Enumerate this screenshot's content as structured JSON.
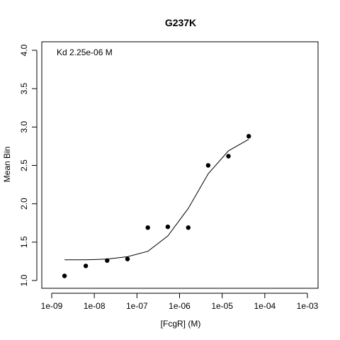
{
  "chart_data": {
    "type": "scatter",
    "title": "G237K",
    "xlabel": "[FcgR] (M)",
    "ylabel": "Mean Bin",
    "x_scale": "log10",
    "xlim": [
      1e-09,
      0.001
    ],
    "ylim": [
      1.0,
      4.0
    ],
    "x_ticks": [
      1e-09,
      1e-08,
      1e-07,
      1e-06,
      1e-05,
      0.0001,
      0.001
    ],
    "x_tick_labels": [
      "1e-09",
      "1e-08",
      "1e-07",
      "1e-06",
      "1e-05",
      "1e-04",
      "1e-03"
    ],
    "y_ticks": [
      1.0,
      1.5,
      2.0,
      2.5,
      3.0,
      3.5,
      4.0
    ],
    "y_tick_labels": [
      "1.0",
      "1.5",
      "2.0",
      "2.5",
      "3.0",
      "3.5",
      "4.0"
    ],
    "annotation": "Kd 2.25e-06 M",
    "grid": false,
    "points": {
      "x": [
        2e-09,
        6.3e-09,
        2e-08,
        6e-08,
        1.8e-07,
        5.3e-07,
        1.6e-06,
        4.7e-06,
        1.4e-05,
        4.2e-05
      ],
      "y": [
        1.06,
        1.19,
        1.26,
        1.28,
        1.69,
        1.7,
        1.69,
        2.5,
        2.62,
        2.88
      ]
    },
    "fit_line": {
      "x": [
        2e-09,
        6.3e-09,
        2e-08,
        6e-08,
        1.8e-07,
        5.3e-07,
        1.6e-06,
        4.7e-06,
        1.4e-05,
        4.2e-05
      ],
      "y": [
        1.27,
        1.27,
        1.28,
        1.31,
        1.38,
        1.58,
        1.94,
        2.39,
        2.69,
        2.84
      ]
    }
  }
}
